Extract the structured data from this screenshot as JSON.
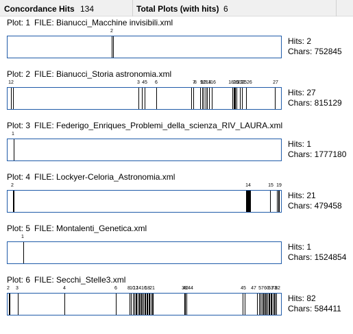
{
  "header": {
    "concordance_hits_label": "Concordance Hits",
    "concordance_hits_value": "134",
    "total_plots_label": "Total Plots (with hits)",
    "total_plots_value": "6"
  },
  "plots": [
    {
      "plot_label": "Plot: 1",
      "file_label": "FILE: Bianucci_Macchine invisibili.xml",
      "hits_text": "Hits: 2",
      "chars_text": "Chars: 752845",
      "marks": [
        0.38,
        0.385
      ],
      "labels": [
        {
          "text": "2",
          "pos": 0.382
        }
      ]
    },
    {
      "plot_label": "Plot: 2",
      "file_label": "FILE: Bianucci_Storia astronomia.xml",
      "hits_text": "Hits: 27",
      "chars_text": "Chars: 815129",
      "marks": [
        0.012,
        0.02,
        0.478,
        0.49,
        0.5,
        0.543,
        0.672,
        0.68,
        0.705,
        0.712,
        0.718,
        0.724,
        0.73,
        0.737,
        0.748,
        0.822,
        0.826,
        0.83,
        0.833,
        0.836,
        0.85,
        0.858,
        0.872,
        0.978
      ],
      "labels": [
        {
          "text": "12",
          "pos": 0.015
        },
        {
          "text": "3",
          "pos": 0.478
        },
        {
          "text": "45",
          "pos": 0.5
        },
        {
          "text": "6",
          "pos": 0.543
        },
        {
          "text": "7",
          "pos": 0.68
        },
        {
          "text": "8",
          "pos": 0.686
        },
        {
          "text": "9",
          "pos": 0.708
        },
        {
          "text": "10",
          "pos": 0.716
        },
        {
          "text": "1213",
          "pos": 0.724
        },
        {
          "text": "14",
          "pos": 0.734
        },
        {
          "text": "16",
          "pos": 0.75
        },
        {
          "text": "1819",
          "pos": 0.826
        },
        {
          "text": "20",
          "pos": 0.834
        },
        {
          "text": "21",
          "pos": 0.85
        },
        {
          "text": "22",
          "pos": 0.858
        },
        {
          "text": "2526",
          "pos": 0.872
        },
        {
          "text": "27",
          "pos": 0.978
        }
      ]
    },
    {
      "plot_label": "Plot: 3",
      "file_label": "FILE: Federigo_Enriques_Problemi_della_scienza_RIV_LAURA.xml",
      "hits_text": "Hits: 1",
      "chars_text": "Chars: 1777180",
      "marks": [
        0.022
      ],
      "labels": [
        {
          "text": "1",
          "pos": 0.022
        }
      ]
    },
    {
      "plot_label": "Plot: 4",
      "file_label": "FILE: Lockyer-Celoria_Astronomia.xml",
      "hits_text": "Hits: 21",
      "chars_text": "Chars: 479458",
      "marks": [
        0.02,
        0.022,
        0.873,
        0.875,
        0.878,
        0.88,
        0.882,
        0.884,
        0.886,
        0.961,
        0.985,
        0.989,
        0.993
      ],
      "labels": [
        {
          "text": "2",
          "pos": 0.021
        },
        {
          "text": "14",
          "pos": 0.878
        },
        {
          "text": "15",
          "pos": 0.961
        },
        {
          "text": "19",
          "pos": 0.989
        }
      ]
    },
    {
      "plot_label": "Plot: 5",
      "file_label": "FILE: Montalenti_Genetica.xml",
      "hits_text": "Hits: 1",
      "chars_text": "Chars: 1524854",
      "marks": [
        0.058
      ],
      "labels": [
        {
          "text": "1",
          "pos": 0.058
        }
      ]
    },
    {
      "plot_label": "Plot: 6",
      "file_label": "FILE: Secchi_Stelle3.xml",
      "hits_text": "Hits: 82",
      "chars_text": "Chars: 584411",
      "marks": [
        0.005,
        0.008,
        0.037,
        0.209,
        0.397,
        0.445,
        0.452,
        0.458,
        0.463,
        0.468,
        0.472,
        0.476,
        0.48,
        0.484,
        0.488,
        0.492,
        0.496,
        0.5,
        0.504,
        0.508,
        0.512,
        0.516,
        0.52,
        0.524,
        0.528,
        0.532,
        0.647,
        0.65,
        0.655,
        0.86,
        0.867,
        0.912,
        0.92,
        0.925,
        0.93,
        0.934,
        0.938,
        0.942,
        0.946,
        0.95,
        0.954,
        0.958,
        0.962,
        0.966,
        0.97,
        0.974,
        0.978,
        0.982
      ],
      "labels": [
        {
          "text": "2",
          "pos": 0.006
        },
        {
          "text": "3",
          "pos": 0.037
        },
        {
          "text": "4",
          "pos": 0.209
        },
        {
          "text": "6",
          "pos": 0.397
        },
        {
          "text": "8",
          "pos": 0.445
        },
        {
          "text": "10",
          "pos": 0.457
        },
        {
          "text": "12",
          "pos": 0.47
        },
        {
          "text": "1416",
          "pos": 0.49
        },
        {
          "text": "18",
          "pos": 0.51
        },
        {
          "text": "21",
          "pos": 0.528
        },
        {
          "text": "38",
          "pos": 0.645
        },
        {
          "text": "42",
          "pos": 0.652
        },
        {
          "text": "44",
          "pos": 0.668
        },
        {
          "text": "45",
          "pos": 0.86
        },
        {
          "text": "47",
          "pos": 0.897
        },
        {
          "text": "57",
          "pos": 0.926
        },
        {
          "text": "60",
          "pos": 0.945
        },
        {
          "text": "63",
          "pos": 0.96
        },
        {
          "text": "73",
          "pos": 0.973
        },
        {
          "text": "82",
          "pos": 0.985
        }
      ]
    }
  ]
}
